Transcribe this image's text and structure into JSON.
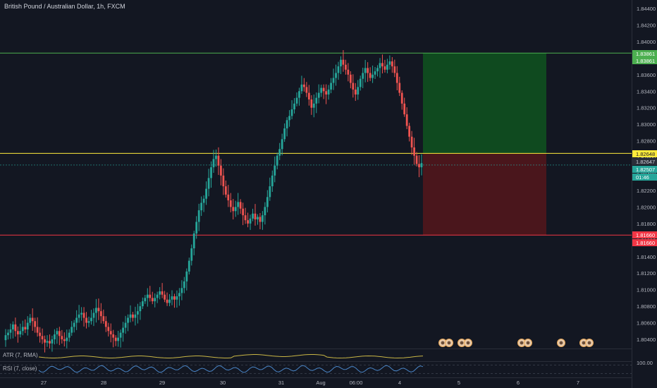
{
  "header": {
    "symbol_title": "British Pound / Australian Dollar, 1h, FXCM"
  },
  "indicators": {
    "atr_label": "ATR (7, RMA)",
    "rsi_label": "RSI (7, close)",
    "rsi_level": "100.00"
  },
  "price_scale": [
    "1.84400",
    "1.84200",
    "1.84000",
    "1.83800",
    "1.83600",
    "1.83400",
    "1.83200",
    "1.83000",
    "1.82800",
    "1.82600",
    "1.82400",
    "1.82200",
    "1.82000",
    "1.81800",
    "1.81600",
    "1.81400",
    "1.81200",
    "1.81000",
    "1.80800",
    "1.80600",
    "1.80400"
  ],
  "time_scale": [
    "27",
    "28",
    "29",
    "30",
    "31",
    "Aug",
    "06:00",
    "4",
    "5",
    "6",
    "7"
  ],
  "tags": {
    "take_profit_upper": "1.83861",
    "take_profit_lower": "1.83861",
    "entry": "1.82648",
    "entry_lower": "1.82647",
    "current_price": "1.82507",
    "countdown": "01:46",
    "stop_upper": "1.81660",
    "stop_lower": "1.81660"
  },
  "colors": {
    "background": "#131722",
    "up_candle": "#26a69a",
    "down_candle": "#ef5350",
    "take_profit_line": "#4caf50",
    "entry_line": "#ffeb3b",
    "stop_line": "#f23645",
    "profit_zone": "#0f4a1f",
    "loss_zone": "#4a161c",
    "atr_line": "#c9b645",
    "rsi_line": "#4a86c8"
  },
  "events": [
    "event-icon",
    "event-icon",
    "event-icon",
    "event-icon",
    "event-icon",
    "event-icon",
    "event-icon"
  ],
  "chart_data": {
    "type": "candlestick",
    "title": "British Pound / Australian Dollar, 1h, FXCM",
    "ylim": [
      1.803,
      1.845
    ],
    "y_ticks": [
      1.804,
      1.806,
      1.808,
      1.81,
      1.812,
      1.814,
      1.816,
      1.818,
      1.82,
      1.822,
      1.824,
      1.826,
      1.828,
      1.83,
      1.832,
      1.834,
      1.836,
      1.838,
      1.84,
      1.842,
      1.844
    ],
    "x_labels": [
      "27",
      "28",
      "29",
      "30",
      "31",
      "Aug",
      "06:00",
      "4",
      "5",
      "6",
      "7"
    ],
    "take_profit": 1.83861,
    "entry": 1.82648,
    "current": 1.82507,
    "stop_loss": 1.8166,
    "closes": [
      1.8045,
      1.8048,
      1.8052,
      1.8058,
      1.805,
      1.8046,
      1.805,
      1.8055,
      1.8052,
      1.806,
      1.8066,
      1.8062,
      1.8055,
      1.8048,
      1.8044,
      1.804,
      1.8036,
      1.8038,
      1.8035,
      1.804,
      1.8046,
      1.805,
      1.8044,
      1.804,
      1.8038,
      1.8042,
      1.8048,
      1.8055,
      1.806,
      1.8066,
      1.807,
      1.8072,
      1.8066,
      1.806,
      1.8062,
      1.8066,
      1.8072,
      1.8078,
      1.8074,
      1.8068,
      1.8062,
      1.8055,
      1.805,
      1.8046,
      1.8042,
      1.8038,
      1.8042,
      1.8048,
      1.8054,
      1.806,
      1.8066,
      1.807,
      1.8066,
      1.807,
      1.8074,
      1.808,
      1.8086,
      1.809,
      1.8094,
      1.809,
      1.8086,
      1.809,
      1.8094,
      1.8098,
      1.8094,
      1.8088,
      1.8084,
      1.8088,
      1.8092,
      1.8088,
      1.8092,
      1.8096,
      1.8102,
      1.811,
      1.8122,
      1.8135,
      1.815,
      1.8168,
      1.8182,
      1.8196,
      1.8205,
      1.821,
      1.8222,
      1.8235,
      1.8248,
      1.8258,
      1.8262,
      1.825,
      1.8238,
      1.8225,
      1.8215,
      1.8208,
      1.82,
      1.8195,
      1.82,
      1.8206,
      1.8198,
      1.819,
      1.8184,
      1.818,
      1.8186,
      1.8192,
      1.8185,
      1.8188,
      1.8182,
      1.819,
      1.82,
      1.8212,
      1.8225,
      1.8238,
      1.825,
      1.8262,
      1.827,
      1.8282,
      1.8295,
      1.8305,
      1.831,
      1.8318,
      1.8325,
      1.8332,
      1.834,
      1.8348,
      1.8345,
      1.8338,
      1.833,
      1.832,
      1.8325,
      1.8332,
      1.8338,
      1.8344,
      1.834,
      1.8336,
      1.8342,
      1.835,
      1.8356,
      1.8362,
      1.837,
      1.8378,
      1.8372,
      1.8366,
      1.836,
      1.835,
      1.8342,
      1.8336,
      1.8345,
      1.8355,
      1.8362,
      1.8368,
      1.8362,
      1.8356,
      1.836,
      1.8364,
      1.8368,
      1.8374,
      1.837,
      1.8366,
      1.8372,
      1.8376,
      1.837,
      1.8362,
      1.835,
      1.8338,
      1.8325,
      1.8312,
      1.8298,
      1.8285,
      1.8272,
      1.8262,
      1.8252,
      1.8248,
      1.8253
    ]
  }
}
